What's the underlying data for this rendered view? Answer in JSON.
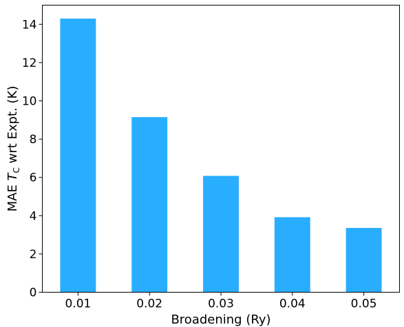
{
  "chart_data": {
    "type": "bar",
    "categories": [
      "0.01",
      "0.02",
      "0.03",
      "0.04",
      "0.05"
    ],
    "values": [
      14.3,
      9.15,
      6.08,
      3.92,
      3.36
    ],
    "xlabel": "Broadening (Ry)",
    "ylabel": {
      "prefix": "MAE ",
      "var": "T",
      "sub": "C",
      "suffix": " wrt Expt. (K)"
    },
    "ylim": [
      0,
      15
    ],
    "yticks": [
      "0",
      "2",
      "4",
      "6",
      "8",
      "10",
      "12",
      "14"
    ],
    "bar_color": "#29adff",
    "grid": false,
    "legend": "none"
  }
}
